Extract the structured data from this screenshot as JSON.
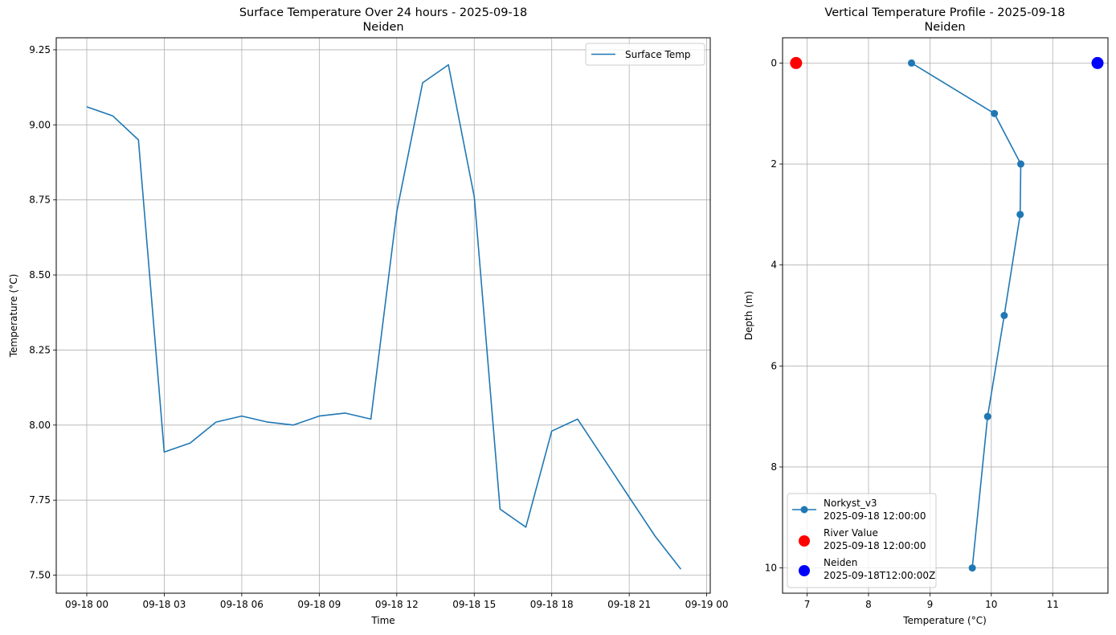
{
  "chart_data": [
    {
      "type": "line",
      "title": "Surface Temperature Over 24 hours - 2025-09-18",
      "subtitle": "Neiden",
      "xlabel": "Time",
      "ylabel": "Temperature (°C)",
      "x_ticks": [
        "09-18 00",
        "09-18 03",
        "09-18 06",
        "09-18 09",
        "09-18 12",
        "09-18 15",
        "09-18 18",
        "09-18 21",
        "09-19 00"
      ],
      "y_ticks": [
        "7.50",
        "7.75",
        "8.00",
        "8.25",
        "8.50",
        "8.75",
        "9.00",
        "9.25"
      ],
      "ylim": [
        7.44,
        9.29
      ],
      "grid": true,
      "legend_position": "top-right",
      "series": [
        {
          "name": "Surface Temp",
          "color": "#1f77b4",
          "x": [
            "2025-09-18 00:00",
            "2025-09-18 01:00",
            "2025-09-18 02:00",
            "2025-09-18 03:00",
            "2025-09-18 04:00",
            "2025-09-18 05:00",
            "2025-09-18 06:00",
            "2025-09-18 07:00",
            "2025-09-18 08:00",
            "2025-09-18 09:00",
            "2025-09-18 10:00",
            "2025-09-18 11:00",
            "2025-09-18 12:00",
            "2025-09-18 13:00",
            "2025-09-18 14:00",
            "2025-09-18 15:00",
            "2025-09-18 16:00",
            "2025-09-18 17:00",
            "2025-09-18 18:00",
            "2025-09-18 19:00",
            "2025-09-18 20:00",
            "2025-09-18 21:00",
            "2025-09-18 22:00",
            "2025-09-18 23:00"
          ],
          "values": [
            9.06,
            9.03,
            8.95,
            7.91,
            7.94,
            8.01,
            8.03,
            8.01,
            8.0,
            8.03,
            8.04,
            8.02,
            8.71,
            9.14,
            9.2,
            8.76,
            7.72,
            7.66,
            7.98,
            8.02,
            7.89,
            7.76,
            7.63,
            7.52
          ]
        }
      ]
    },
    {
      "type": "line",
      "title": "Vertical Temperature Profile - 2025-09-18",
      "subtitle": "Neiden",
      "xlabel": "Temperature (°C)",
      "ylabel": "Depth (m)",
      "x_ticks": [
        7,
        8,
        9,
        10,
        11
      ],
      "y_ticks": [
        0,
        2,
        4,
        6,
        8,
        10
      ],
      "xlim": [
        6.6,
        11.9
      ],
      "ylim": [
        10.5,
        -0.5
      ],
      "y_inverted": true,
      "grid": true,
      "legend_position": "bottom-left",
      "series": [
        {
          "name": "Norkyst_v3",
          "name_line2": "2025-09-18 12:00:00",
          "color": "#1f77b4",
          "marker": "circle",
          "points": [
            [
              8.7,
              0
            ],
            [
              10.05,
              1
            ],
            [
              10.48,
              2
            ],
            [
              10.47,
              3
            ],
            [
              10.21,
              5
            ],
            [
              9.94,
              7
            ],
            [
              9.69,
              10
            ]
          ]
        },
        {
          "name": "River Value",
          "name_line2": "2025-09-18 12:00:00",
          "color": "#ff0000",
          "marker": "circle-large",
          "points": [
            [
              6.82,
              0
            ]
          ]
        },
        {
          "name": "Neiden",
          "name_line2": "2025-09-18T12:00:00Z",
          "color": "#0000ff",
          "marker": "circle-large",
          "points": [
            [
              11.73,
              0
            ]
          ]
        }
      ]
    }
  ]
}
